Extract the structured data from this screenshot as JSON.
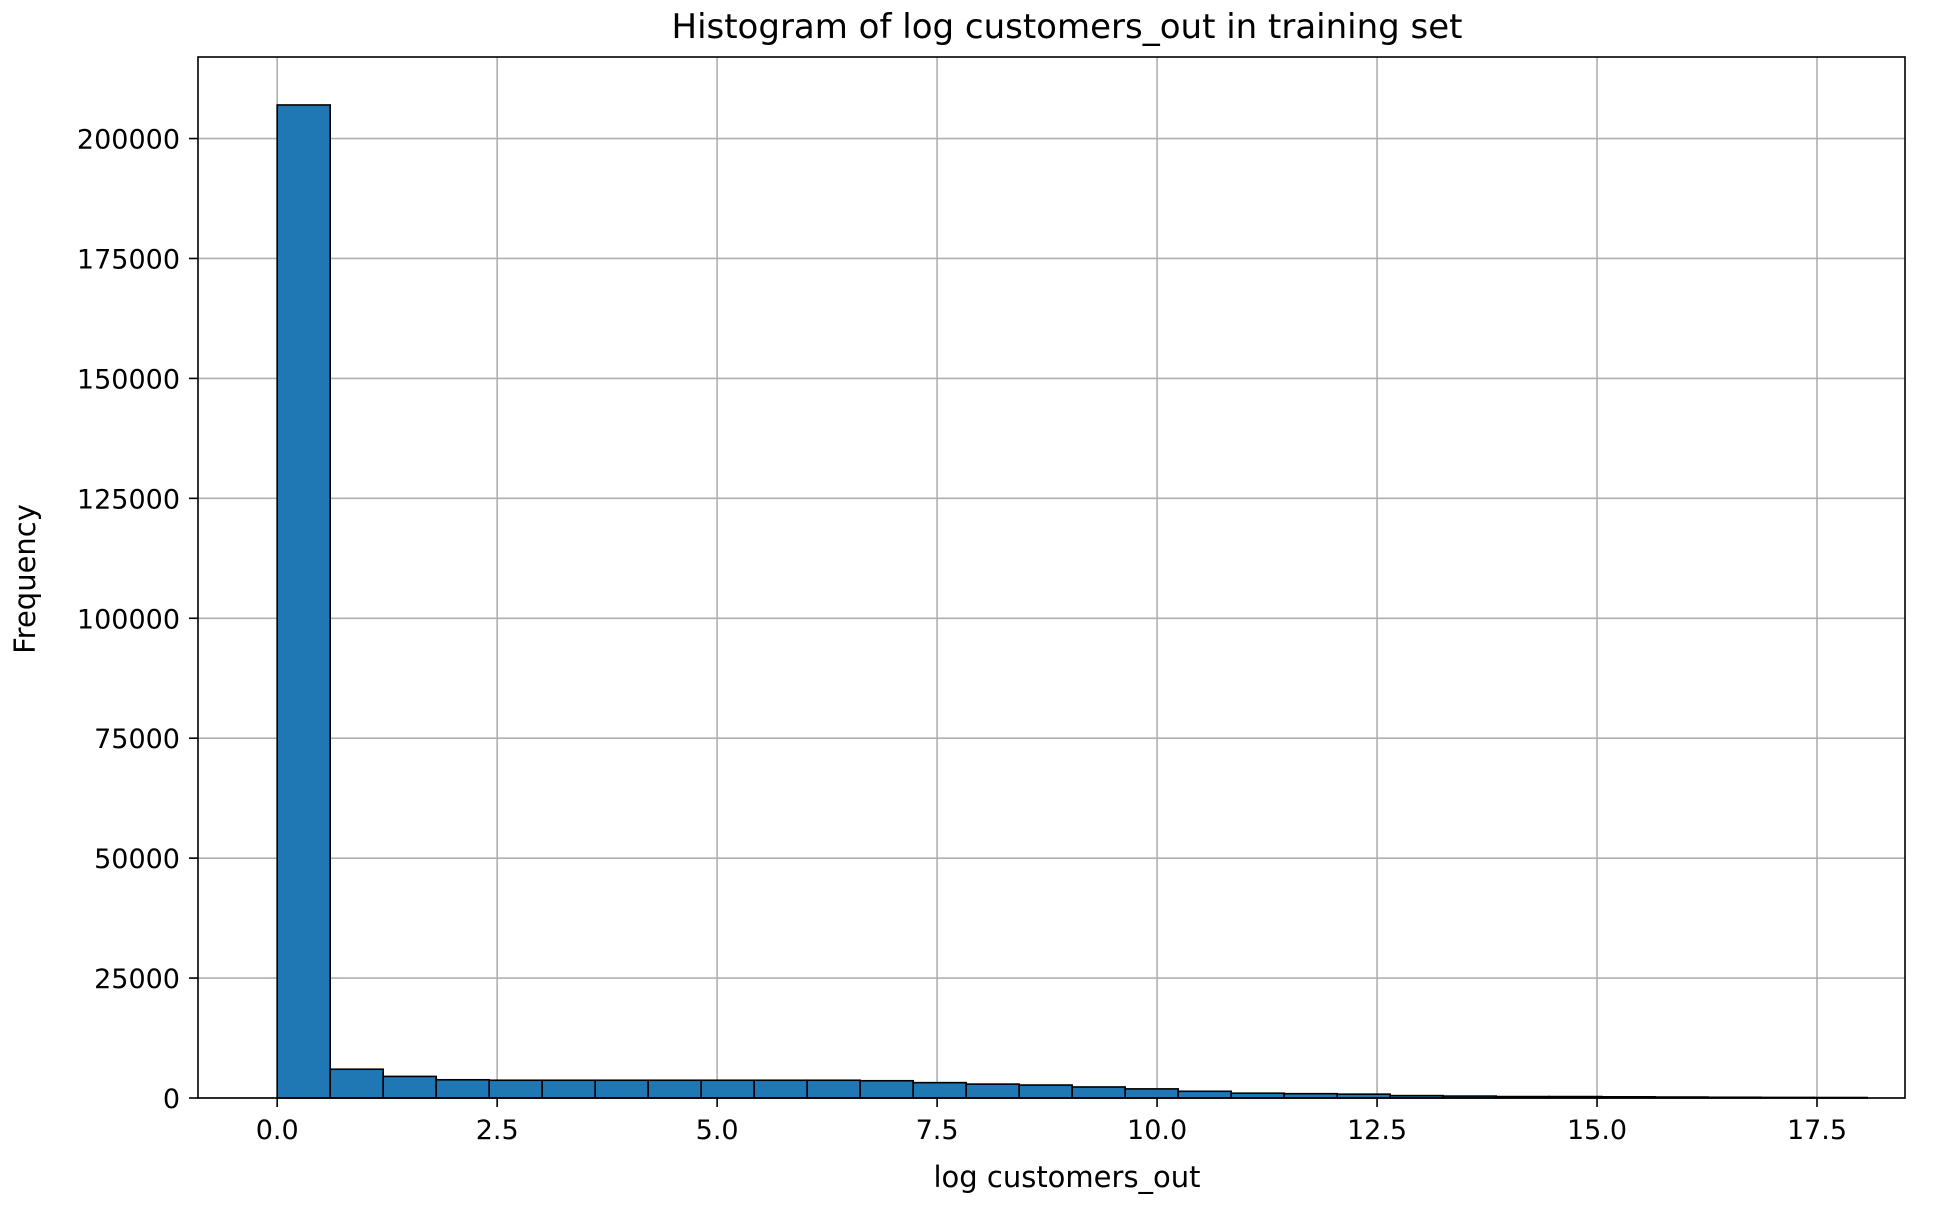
{
  "chart_data": {
    "type": "bar",
    "title": "Histogram of log customers_out in training set",
    "xlabel": "log customers_out",
    "ylabel": "Frequency",
    "xlim": [
      -0.9,
      18.5
    ],
    "ylim": [
      0,
      217000
    ],
    "x_ticks": [
      {
        "value": 0.0,
        "label": "0.0"
      },
      {
        "value": 2.5,
        "label": "2.5"
      },
      {
        "value": 5.0,
        "label": "5.0"
      },
      {
        "value": 7.5,
        "label": "7.5"
      },
      {
        "value": 10.0,
        "label": "10.0"
      },
      {
        "value": 12.5,
        "label": "12.5"
      },
      {
        "value": 15.0,
        "label": "15.0"
      },
      {
        "value": 17.5,
        "label": "17.5"
      }
    ],
    "y_ticks": [
      {
        "value": 0,
        "label": "0"
      },
      {
        "value": 25000,
        "label": "25000"
      },
      {
        "value": 50000,
        "label": "50000"
      },
      {
        "value": 75000,
        "label": "75000"
      },
      {
        "value": 100000,
        "label": "100000"
      },
      {
        "value": 125000,
        "label": "125000"
      },
      {
        "value": 150000,
        "label": "150000"
      },
      {
        "value": 175000,
        "label": "175000"
      },
      {
        "value": 200000,
        "label": "200000"
      }
    ],
    "grid": true,
    "bar_color": "#1f77b4",
    "edge_color": "#000000",
    "bin_start": 0.0,
    "bin_end": 18.07,
    "values": [
      207000,
      6000,
      4500,
      3800,
      3700,
      3700,
      3700,
      3700,
      3700,
      3700,
      3700,
      3600,
      3200,
      2900,
      2700,
      2300,
      1900,
      1400,
      1000,
      900,
      800,
      500,
      400,
      300,
      300,
      250,
      200,
      150,
      120,
      100
    ]
  }
}
